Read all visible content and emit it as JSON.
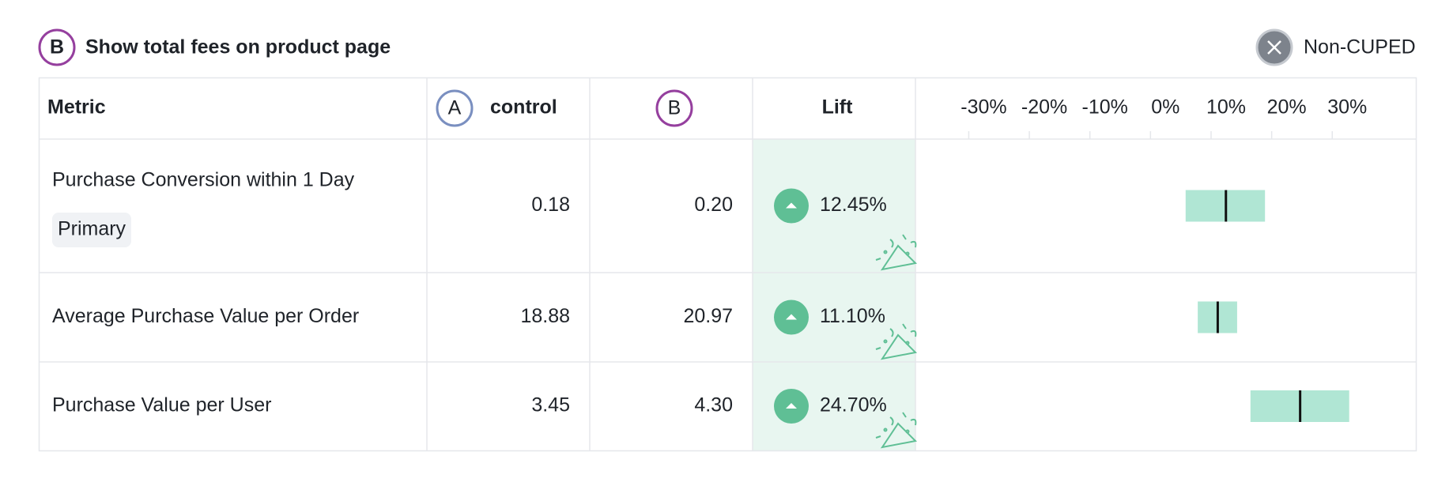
{
  "header": {
    "variant_badge": "B",
    "title": "Show total fees on product page",
    "toggle_label": "Non-CUPED"
  },
  "table": {
    "columns": {
      "metric": "Metric",
      "a_badge": "A",
      "a_name": "control",
      "b_badge": "B",
      "lift": "Lift"
    },
    "rows": [
      {
        "metric": "Purchase Conversion within 1 Day",
        "tag": "Primary",
        "a": "0.18",
        "b": "0.20",
        "lift": 12.45,
        "lift_label": "12.45%",
        "ci": [
          5.8,
          18.9
        ]
      },
      {
        "metric": "Average Purchase Value per Order",
        "a": "18.88",
        "b": "20.97",
        "lift": 11.1,
        "lift_label": "11.10%",
        "ci": [
          7.8,
          14.3
        ]
      },
      {
        "metric": "Purchase Value per User",
        "a": "3.45",
        "b": "4.30",
        "lift": 24.7,
        "lift_label": "24.70%",
        "ci": [
          16.5,
          32.8
        ]
      }
    ]
  },
  "chart": {
    "xlim": [
      -38.8,
      43.8
    ],
    "xticks": [
      {
        "value": -30,
        "label": "-30%"
      },
      {
        "value": -20,
        "label": "-20%"
      },
      {
        "value": -10,
        "label": "-10%"
      },
      {
        "value": 0,
        "label": "0%"
      },
      {
        "value": 10,
        "label": "10%"
      },
      {
        "value": 20,
        "label": "20%"
      },
      {
        "value": 30,
        "label": "30%"
      }
    ]
  }
}
